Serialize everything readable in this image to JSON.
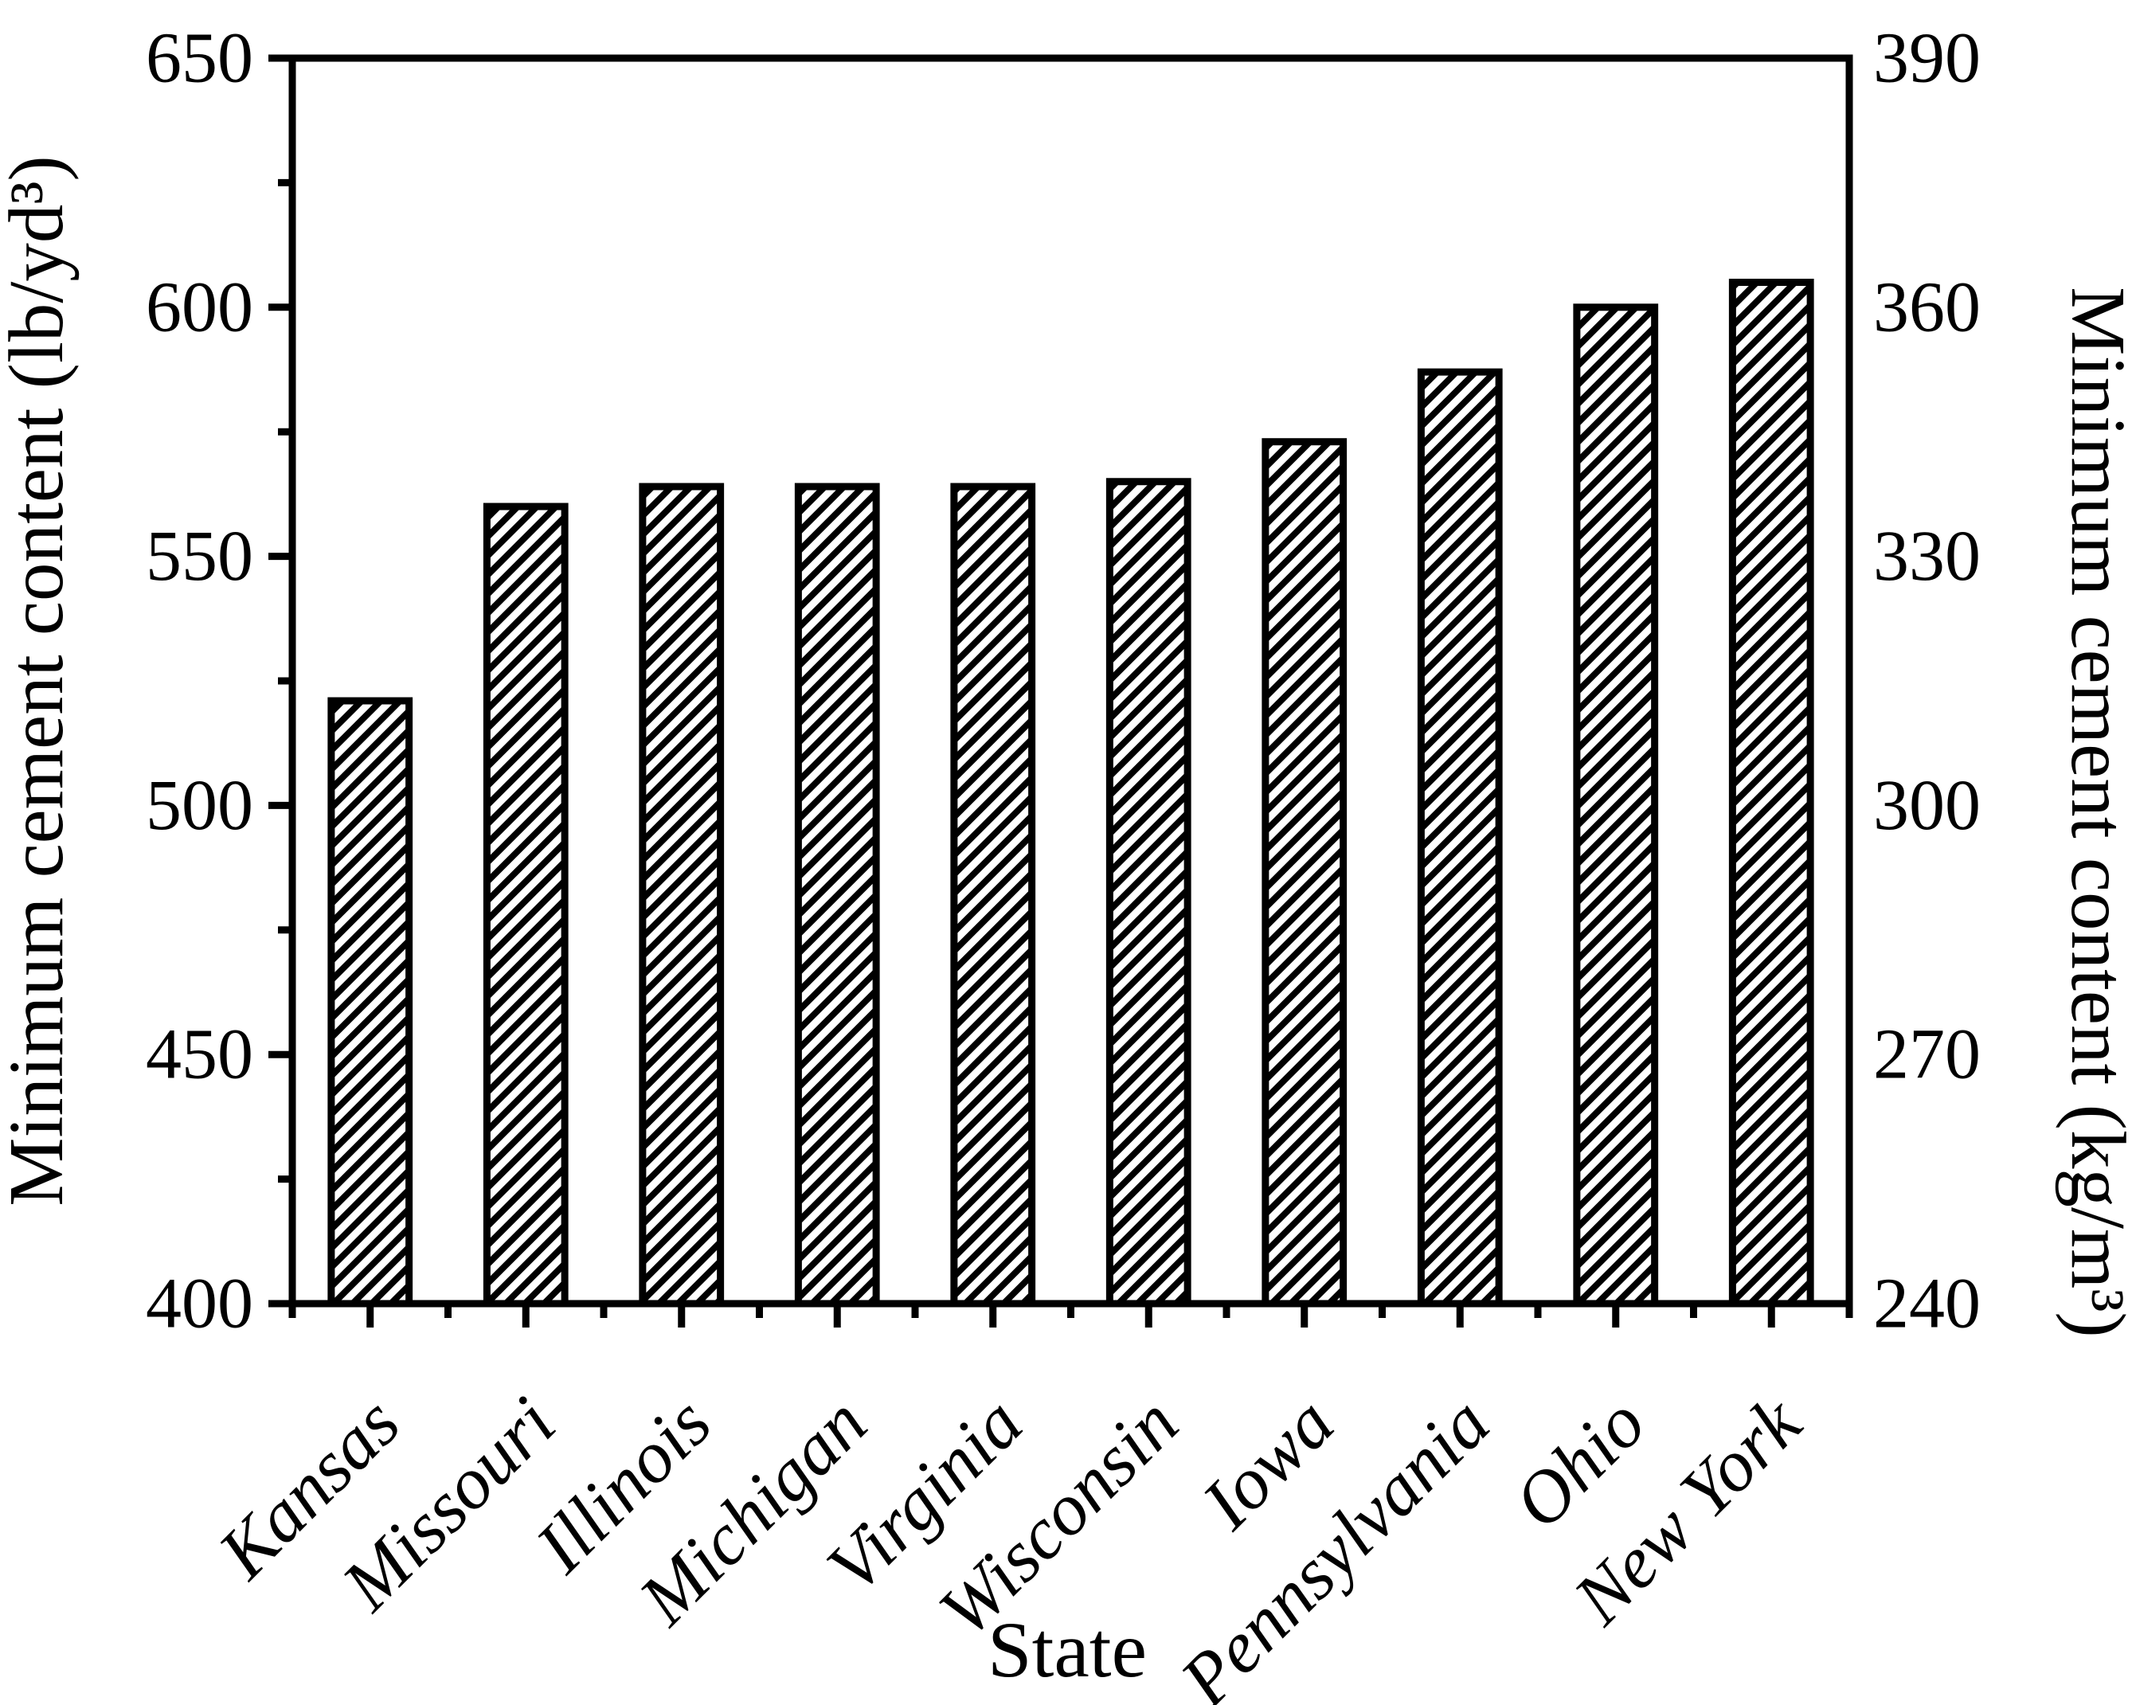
{
  "figure": {
    "background": "#ffffff",
    "foreground": "#000000",
    "left_axis_title": "Minimum cement content (lb/yd³)",
    "right_axis_title": "Minimum cement content (kg/m³)",
    "x_axis_title": "State"
  },
  "chart_data": {
    "type": "bar",
    "title": "",
    "xlabel": "State",
    "ylabel_left": "Minimum cement content (lb/yd³)",
    "ylabel_right": "Minimum cement content (kg/m³)",
    "categories": [
      "Kansas",
      "Missouri",
      "Illinois",
      "Michigan",
      "Virginia",
      "Wisconsin",
      "Iowa",
      "Pennsylvania",
      "Ohio",
      "New York"
    ],
    "values": [
      521,
      560,
      564,
      564,
      564,
      565,
      573,
      587,
      600,
      605
    ],
    "units_left": "lb/yd³",
    "units_right": "kg/m³",
    "ylim_left": [
      400,
      650
    ],
    "left_major_ticks": [
      650,
      600,
      550,
      500,
      450,
      400
    ],
    "left_minor_ticks": [
      625,
      575,
      525,
      475,
      425
    ],
    "ylim_right": [
      240,
      390
    ],
    "right_tick_labels": [
      390,
      360,
      330,
      300,
      270,
      240
    ],
    "bar_style": "diagonal-hatch",
    "bar_fill_color": "#ffffff",
    "bar_line_color": "#000000",
    "grid": false,
    "legend": false
  }
}
